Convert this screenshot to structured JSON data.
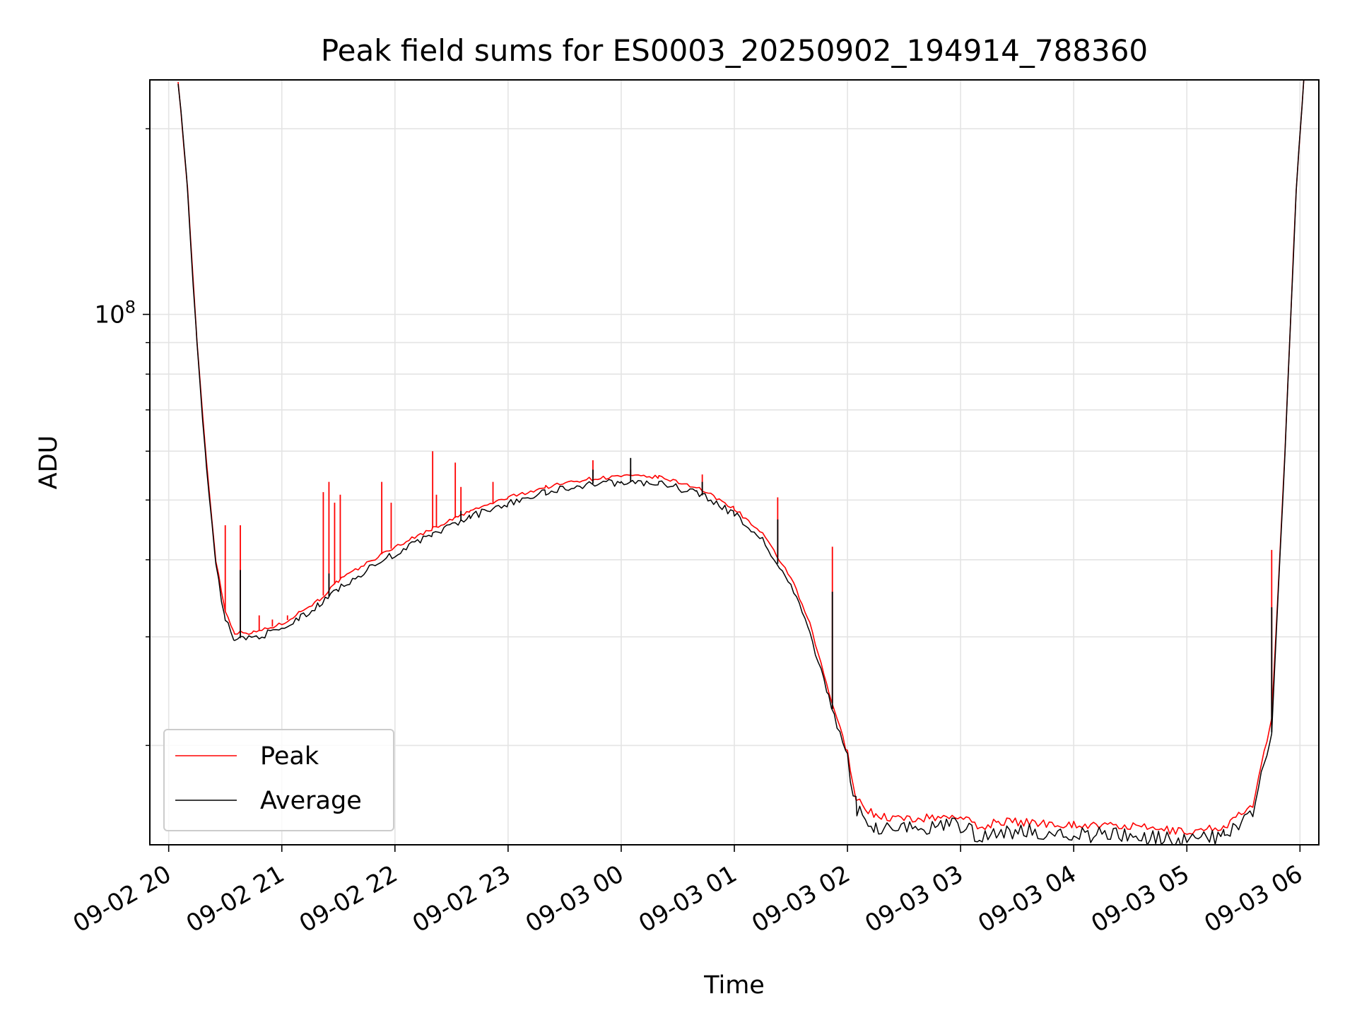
{
  "chart_data": {
    "type": "line",
    "title": "Peak field sums for ES0003_20250902_194914_788360",
    "xlabel": "Time",
    "ylabel": "ADU",
    "y_scale": "log",
    "y_major_tick": {
      "value": 100000000,
      "label_base": "10",
      "label_exp": "8"
    },
    "y_minor_ticks": [
      20000000,
      30000000,
      40000000,
      50000000,
      60000000,
      70000000,
      80000000,
      90000000,
      200000000
    ],
    "ylim": [
      13800000,
      240000000
    ],
    "xlim": [
      "2025-09-02 19:50",
      "2025-09-03 06:10"
    ],
    "x_tick_labels": [
      "09-02 20",
      "09-02 21",
      "09-02 22",
      "09-02 23",
      "09-03 00",
      "09-03 01",
      "09-03 02",
      "09-03 03",
      "09-03 04",
      "09-03 05",
      "09-03 06"
    ],
    "x_tick_values": [
      "2025-09-02 20:00",
      "2025-09-02 21:00",
      "2025-09-02 22:00",
      "2025-09-02 23:00",
      "2025-09-03 00:00",
      "2025-09-03 01:00",
      "2025-09-03 02:00",
      "2025-09-03 03:00",
      "2025-09-03 04:00",
      "2025-09-03 05:00",
      "2025-09-03 06:00"
    ],
    "grid": true,
    "legend_position": "lower-left",
    "series": [
      {
        "name": "Peak",
        "color": "#ff0000",
        "points": [
          [
            "2025-09-02 20:05",
            240000000
          ],
          [
            "2025-09-02 20:10",
            160000000
          ],
          [
            "2025-09-02 20:15",
            90000000
          ],
          [
            "2025-09-02 20:20",
            58000000
          ],
          [
            "2025-09-02 20:25",
            40000000
          ],
          [
            "2025-09-02 20:30",
            33000000
          ],
          [
            "2025-09-02 20:35",
            30500000
          ],
          [
            "2025-09-02 20:45",
            30500000
          ],
          [
            "2025-09-02 21:00",
            31500000
          ],
          [
            "2025-09-02 21:10",
            33000000
          ],
          [
            "2025-09-02 21:20",
            34500000
          ],
          [
            "2025-09-02 21:30",
            37000000
          ],
          [
            "2025-09-02 21:45",
            39500000
          ],
          [
            "2025-09-02 22:00",
            42000000
          ],
          [
            "2025-09-02 22:20",
            45000000
          ],
          [
            "2025-09-02 22:40",
            48000000
          ],
          [
            "2025-09-02 23:00",
            50500000
          ],
          [
            "2025-09-02 23:20",
            52500000
          ],
          [
            "2025-09-02 23:40",
            54000000
          ],
          [
            "2025-09-03 00:00",
            54700000
          ],
          [
            "2025-09-03 00:20",
            54500000
          ],
          [
            "2025-09-03 00:40",
            52500000
          ],
          [
            "2025-09-03 01:00",
            48500000
          ],
          [
            "2025-09-03 01:15",
            44000000
          ],
          [
            "2025-09-03 01:30",
            37500000
          ],
          [
            "2025-09-03 01:40",
            31500000
          ],
          [
            "2025-09-03 01:50",
            24500000
          ],
          [
            "2025-09-03 02:00",
            19500000
          ],
          [
            "2025-09-03 02:05",
            16300000
          ],
          [
            "2025-09-03 02:15",
            15400000
          ],
          [
            "2025-09-03 02:30",
            15200000
          ],
          [
            "2025-09-03 03:00",
            15400000
          ],
          [
            "2025-09-03 03:10",
            14700000
          ],
          [
            "2025-09-03 03:20",
            15100000
          ],
          [
            "2025-09-03 04:00",
            14900000
          ],
          [
            "2025-09-03 04:30",
            14800000
          ],
          [
            "2025-09-03 05:00",
            14500000
          ],
          [
            "2025-09-03 05:20",
            14800000
          ],
          [
            "2025-09-03 05:35",
            16000000
          ],
          [
            "2025-09-03 05:45",
            22000000
          ],
          [
            "2025-09-03 05:52",
            60000000
          ],
          [
            "2025-09-03 05:58",
            160000000
          ],
          [
            "2025-09-03 06:02",
            240000000
          ]
        ],
        "spikes": [
          [
            "2025-09-02 20:30",
            45500000
          ],
          [
            "2025-09-02 20:38",
            45500000
          ],
          [
            "2025-09-02 20:48",
            32500000
          ],
          [
            "2025-09-02 20:55",
            32000000
          ],
          [
            "2025-09-02 21:03",
            32500000
          ],
          [
            "2025-09-02 21:22",
            51500000
          ],
          [
            "2025-09-02 21:25",
            53500000
          ],
          [
            "2025-09-02 21:28",
            49500000
          ],
          [
            "2025-09-02 21:31",
            51000000
          ],
          [
            "2025-09-02 21:53",
            53500000
          ],
          [
            "2025-09-02 21:58",
            49500000
          ],
          [
            "2025-09-02 22:20",
            60000000
          ],
          [
            "2025-09-02 22:22",
            51000000
          ],
          [
            "2025-09-02 22:32",
            57500000
          ],
          [
            "2025-09-02 22:35",
            52500000
          ],
          [
            "2025-09-02 22:52",
            53500000
          ],
          [
            "2025-09-02 23:45",
            58000000
          ],
          [
            "2025-09-03 00:05",
            56000000
          ],
          [
            "2025-09-03 00:43",
            55000000
          ],
          [
            "2025-09-03 01:23",
            50500000
          ],
          [
            "2025-09-03 01:52",
            42000000
          ],
          [
            "2025-09-03 05:45",
            41500000
          ]
        ]
      },
      {
        "name": "Average",
        "color": "#000000",
        "points": [
          [
            "2025-09-02 20:05",
            240000000
          ],
          [
            "2025-09-02 20:10",
            160000000
          ],
          [
            "2025-09-02 20:15",
            89000000
          ],
          [
            "2025-09-02 20:20",
            57000000
          ],
          [
            "2025-09-02 20:25",
            39000000
          ],
          [
            "2025-09-02 20:30",
            32000000
          ],
          [
            "2025-09-02 20:35",
            29800000
          ],
          [
            "2025-09-02 20:45",
            30000000
          ],
          [
            "2025-09-02 21:00",
            30800000
          ],
          [
            "2025-09-02 21:10",
            32300000
          ],
          [
            "2025-09-02 21:20",
            33800000
          ],
          [
            "2025-09-02 21:30",
            36000000
          ],
          [
            "2025-09-02 21:45",
            38500000
          ],
          [
            "2025-09-02 22:00",
            41000000
          ],
          [
            "2025-09-02 22:20",
            44000000
          ],
          [
            "2025-09-02 22:40",
            47000000
          ],
          [
            "2025-09-02 23:00",
            49500000
          ],
          [
            "2025-09-02 23:20",
            51500000
          ],
          [
            "2025-09-02 23:40",
            53000000
          ],
          [
            "2025-09-03 00:00",
            53500000
          ],
          [
            "2025-09-03 00:20",
            53300000
          ],
          [
            "2025-09-03 00:40",
            51500000
          ],
          [
            "2025-09-03 01:00",
            47500000
          ],
          [
            "2025-09-03 01:15",
            43000000
          ],
          [
            "2025-09-03 01:30",
            36500000
          ],
          [
            "2025-09-03 01:40",
            30500000
          ],
          [
            "2025-09-03 01:50",
            24000000
          ],
          [
            "2025-09-03 02:00",
            19000000
          ],
          [
            "2025-09-03 02:05",
            15800000
          ],
          [
            "2025-09-03 02:15",
            14800000
          ],
          [
            "2025-09-03 02:30",
            14700000
          ],
          [
            "2025-09-03 03:00",
            14900000
          ],
          [
            "2025-09-03 03:10",
            14300000
          ],
          [
            "2025-09-03 03:20",
            14600000
          ],
          [
            "2025-09-03 04:00",
            14400000
          ],
          [
            "2025-09-03 04:30",
            14300000
          ],
          [
            "2025-09-03 05:00",
            14100000
          ],
          [
            "2025-09-03 05:20",
            14300000
          ],
          [
            "2025-09-03 05:35",
            15500000
          ],
          [
            "2025-09-03 05:45",
            21000000
          ],
          [
            "2025-09-03 05:52",
            59000000
          ],
          [
            "2025-09-03 05:58",
            160000000
          ],
          [
            "2025-09-03 06:02",
            240000000
          ]
        ],
        "spikes": [
          [
            "2025-09-02 20:38",
            38500000
          ],
          [
            "2025-09-02 21:25",
            38000000
          ],
          [
            "2025-09-02 22:35",
            48000000
          ],
          [
            "2025-09-02 23:45",
            56000000
          ],
          [
            "2025-09-03 00:05",
            58500000
          ],
          [
            "2025-09-03 00:43",
            53500000
          ],
          [
            "2025-09-03 01:23",
            46500000
          ],
          [
            "2025-09-03 01:52",
            35500000
          ],
          [
            "2025-09-03 05:45",
            33500000
          ]
        ]
      }
    ]
  }
}
